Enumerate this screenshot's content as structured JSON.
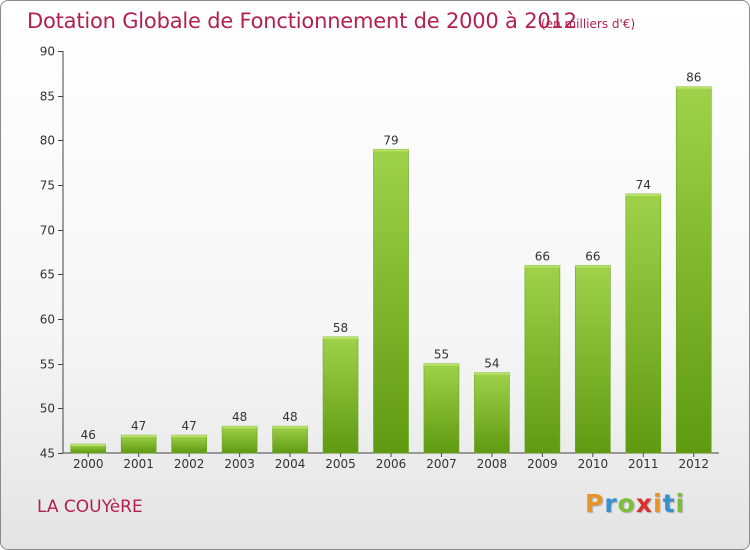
{
  "chart_data": {
    "type": "bar",
    "title": "Dotation Globale de Fonctionnement de 2000 à 2012",
    "unit": "(en milliers d'€)",
    "xlabel": "",
    "ylabel": "",
    "categories": [
      "2000",
      "2001",
      "2002",
      "2003",
      "2004",
      "2005",
      "2006",
      "2007",
      "2008",
      "2009",
      "2010",
      "2011",
      "2012"
    ],
    "values": [
      46,
      47,
      47,
      48,
      48,
      58,
      79,
      55,
      54,
      66,
      66,
      74,
      86
    ],
    "ylim": [
      45,
      90
    ],
    "yticks": [
      45,
      50,
      55,
      60,
      65,
      70,
      75,
      80,
      85,
      90
    ],
    "grid": false,
    "legend": "none"
  },
  "footer": {
    "commune": "LA COUYèRE",
    "logo_letters": [
      "P",
      "r",
      "o",
      "x",
      "i",
      "t",
      "i"
    ]
  },
  "colors": {
    "title": "#b3204f",
    "bar_top": "#9fd24a",
    "bar_bottom": "#5f9a12",
    "axis": "#444444",
    "logo": [
      "#e8932a",
      "#3a8fd1",
      "#7cbd3a",
      "#d9322e",
      "#e8932a",
      "#3a8fd1",
      "#7cbd3a"
    ]
  }
}
